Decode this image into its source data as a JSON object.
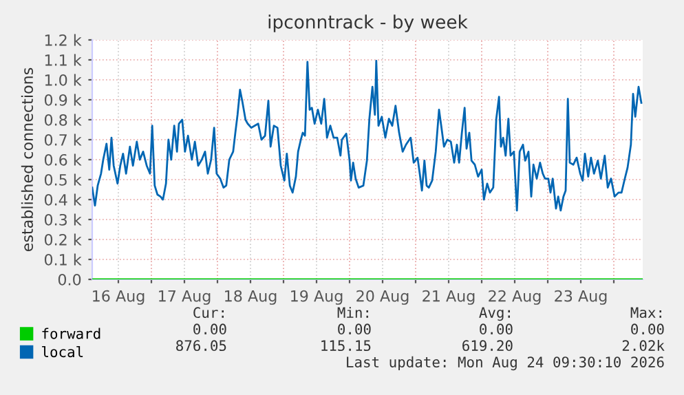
{
  "chart_data": {
    "type": "line",
    "title": "ipconntrack - by week",
    "ylabel": "established connections",
    "xlim": [
      "2026-08-16T02:30",
      "2026-08-24T10:30"
    ],
    "xticks": [
      {
        "value": "2026-08-16T12:00",
        "label": "16 Aug"
      },
      {
        "value": "2026-08-17T00:00",
        "label": null
      },
      {
        "value": "2026-08-17T12:00",
        "label": "17 Aug"
      },
      {
        "value": "2026-08-18T00:00",
        "label": null
      },
      {
        "value": "2026-08-18T12:00",
        "label": "18 Aug"
      },
      {
        "value": "2026-08-19T00:00",
        "label": null
      },
      {
        "value": "2026-08-19T12:00",
        "label": "19 Aug"
      },
      {
        "value": "2026-08-20T00:00",
        "label": null
      },
      {
        "value": "2026-08-20T12:00",
        "label": "20 Aug"
      },
      {
        "value": "2026-08-21T00:00",
        "label": null
      },
      {
        "value": "2026-08-21T12:00",
        "label": "21 Aug"
      },
      {
        "value": "2026-08-22T00:00",
        "label": null
      },
      {
        "value": "2026-08-22T12:00",
        "label": "22 Aug"
      },
      {
        "value": "2026-08-23T00:00",
        "label": null
      },
      {
        "value": "2026-08-23T12:00",
        "label": "23 Aug"
      },
      {
        "value": "2026-08-24T00:00",
        "label": null
      }
    ],
    "ylim": [
      0,
      1200
    ],
    "yticks": [
      {
        "value": 0,
        "label": "0.0"
      },
      {
        "value": 100,
        "label": "0.1 k"
      },
      {
        "value": 200,
        "label": "0.2 k"
      },
      {
        "value": 300,
        "label": "0.3 k"
      },
      {
        "value": 400,
        "label": "0.4 k"
      },
      {
        "value": 500,
        "label": "0.5 k"
      },
      {
        "value": 600,
        "label": "0.6 k"
      },
      {
        "value": 700,
        "label": "0.7 k"
      },
      {
        "value": 800,
        "label": "0.8 k"
      },
      {
        "value": 900,
        "label": "0.9 k"
      },
      {
        "value": 1000,
        "label": "1.0 k"
      },
      {
        "value": 1100,
        "label": "1.1 k"
      },
      {
        "value": 1200,
        "label": "1.2 k"
      }
    ],
    "grid": true,
    "legend": "bottom left",
    "marker": "none",
    "line_style": "solid",
    "series": [
      {
        "name": "forward",
        "color": "#00cc00",
        "x": [
          "2026-08-16T02:30",
          "2026-08-24T10:30"
        ],
        "values": [
          0,
          0
        ]
      },
      {
        "name": "local",
        "color": "#0066b3",
        "x": [
          "2026-08-16T02:30",
          "2026-08-16T03:30",
          "2026-08-16T04:30",
          "2026-08-16T05:42",
          "2026-08-16T06:30",
          "2026-08-16T07:42",
          "2026-08-16T08:42",
          "2026-08-16T09:30",
          "2026-08-16T10:18",
          "2026-08-16T11:42",
          "2026-08-16T12:42",
          "2026-08-16T13:42",
          "2026-08-16T14:48",
          "2026-08-16T16:12",
          "2026-08-16T17:18",
          "2026-08-16T18:42",
          "2026-08-16T19:48",
          "2026-08-16T21:00",
          "2026-08-16T22:18",
          "2026-08-16T23:30",
          "2026-08-17T00:18",
          "2026-08-17T01:12",
          "2026-08-17T02:12",
          "2026-08-17T03:18",
          "2026-08-17T04:12",
          "2026-08-17T05:18",
          "2026-08-17T06:12",
          "2026-08-17T07:12",
          "2026-08-17T08:18",
          "2026-08-17T09:18",
          "2026-08-17T10:00",
          "2026-08-17T11:12",
          "2026-08-17T12:12",
          "2026-08-17T13:18",
          "2026-08-17T14:42",
          "2026-08-17T15:48",
          "2026-08-17T17:00",
          "2026-08-17T18:18",
          "2026-08-17T19:30",
          "2026-08-17T20:30",
          "2026-08-17T21:42",
          "2026-08-17T22:48",
          "2026-08-17T23:42",
          "2026-08-18T01:00",
          "2026-08-18T02:12",
          "2026-08-18T03:12",
          "2026-08-18T04:18",
          "2026-08-18T05:42",
          "2026-08-18T06:30",
          "2026-08-18T07:18",
          "2026-08-18T08:12",
          "2026-08-18T09:00",
          "2026-08-18T10:12",
          "2026-08-18T11:00",
          "2026-08-18T12:18",
          "2026-08-18T13:30",
          "2026-08-18T14:48",
          "2026-08-18T16:00",
          "2026-08-18T17:18",
          "2026-08-18T18:30",
          "2026-08-18T19:18",
          "2026-08-18T20:30",
          "2026-08-18T21:48",
          "2026-08-18T23:00",
          "2026-08-19T00:18",
          "2026-08-19T01:12",
          "2026-08-19T02:18",
          "2026-08-19T03:18",
          "2026-08-19T04:30",
          "2026-08-19T05:18",
          "2026-08-19T06:18",
          "2026-08-19T07:00",
          "2026-08-19T07:48",
          "2026-08-19T08:42",
          "2026-08-19T09:30",
          "2026-08-19T10:18",
          "2026-08-19T11:18",
          "2026-08-19T12:30",
          "2026-08-19T13:42",
          "2026-08-19T14:48",
          "2026-08-19T15:48",
          "2026-08-19T17:00",
          "2026-08-19T18:12",
          "2026-08-19T19:30",
          "2026-08-19T20:42",
          "2026-08-19T21:12",
          "2026-08-19T22:48",
          "2026-08-20T00:00",
          "2026-08-20T00:30",
          "2026-08-20T01:18",
          "2026-08-20T02:12",
          "2026-08-20T03:18",
          "2026-08-20T05:00",
          "2026-08-20T06:18",
          "2026-08-20T07:12",
          "2026-08-20T08:18",
          "2026-08-20T09:12",
          "2026-08-20T09:42",
          "2026-08-20T10:30",
          "2026-08-20T11:42",
          "2026-08-20T13:00",
          "2026-08-20T14:18",
          "2026-08-20T15:30",
          "2026-08-20T16:42",
          "2026-08-20T18:00",
          "2026-08-20T19:18",
          "2026-08-20T20:30",
          "2026-08-20T22:12",
          "2026-08-20T23:18",
          "2026-08-21T00:42",
          "2026-08-21T01:30",
          "2026-08-21T02:18",
          "2026-08-21T03:12",
          "2026-08-21T04:00",
          "2026-08-21T04:48",
          "2026-08-21T06:00",
          "2026-08-21T07:18",
          "2026-08-21T08:30",
          "2026-08-21T09:18",
          "2026-08-21T10:18",
          "2026-08-21T11:30",
          "2026-08-21T12:48",
          "2026-08-21T14:00",
          "2026-08-21T15:00",
          "2026-08-21T15:48",
          "2026-08-21T16:48",
          "2026-08-21T17:48",
          "2026-08-21T18:30",
          "2026-08-21T19:30",
          "2026-08-21T20:18",
          "2026-08-21T21:30",
          "2026-08-21T22:42",
          "2026-08-22T00:00",
          "2026-08-22T00:48",
          "2026-08-22T02:00",
          "2026-08-22T03:00",
          "2026-08-22T04:12",
          "2026-08-22T05:18",
          "2026-08-22T06:18",
          "2026-08-22T07:00",
          "2026-08-22T07:48",
          "2026-08-22T08:42",
          "2026-08-22T09:42",
          "2026-08-22T10:30",
          "2026-08-22T11:42",
          "2026-08-22T12:48",
          "2026-08-22T13:48",
          "2026-08-22T15:00",
          "2026-08-22T15:48",
          "2026-08-22T17:00",
          "2026-08-22T18:00",
          "2026-08-22T18:48",
          "2026-08-22T20:00",
          "2026-08-22T21:12",
          "2026-08-22T22:12",
          "2026-08-22T23:00",
          "2026-08-23T00:12",
          "2026-08-23T01:00",
          "2026-08-23T01:48",
          "2026-08-23T03:00",
          "2026-08-23T03:48",
          "2026-08-23T04:42",
          "2026-08-23T05:42",
          "2026-08-23T06:30",
          "2026-08-23T07:18",
          "2026-08-23T08:00",
          "2026-08-23T09:18",
          "2026-08-23T10:30",
          "2026-08-23T11:48",
          "2026-08-23T12:42",
          "2026-08-23T13:30",
          "2026-08-23T14:42",
          "2026-08-23T15:42",
          "2026-08-23T16:48",
          "2026-08-23T18:12",
          "2026-08-23T19:18",
          "2026-08-23T20:42",
          "2026-08-23T21:48",
          "2026-08-23T23:00",
          "2026-08-24T00:18",
          "2026-08-24T01:42",
          "2026-08-24T02:48",
          "2026-08-24T04:00",
          "2026-08-24T05:00",
          "2026-08-24T06:12",
          "2026-08-24T07:00",
          "2026-08-24T07:48",
          "2026-08-24T09:00",
          "2026-08-24T10:00"
        ],
        "values": [
          460,
          370,
          470,
          530,
          600,
          680,
          550,
          710,
          570,
          480,
          570,
          630,
          530,
          665,
          570,
          690,
          600,
          640,
          570,
          530,
          770,
          470,
          425,
          415,
          400,
          480,
          700,
          600,
          770,
          640,
          780,
          800,
          640,
          720,
          600,
          690,
          570,
          600,
          640,
          530,
          600,
          760,
          530,
          505,
          460,
          470,
          600,
          640,
          735,
          825,
          950,
          895,
          800,
          780,
          760,
          770,
          780,
          700,
          720,
          895,
          665,
          770,
          760,
          570,
          495,
          630,
          470,
          435,
          515,
          640,
          700,
          735,
          720,
          1090,
          850,
          860,
          780,
          850,
          780,
          905,
          710,
          770,
          710,
          710,
          620,
          700,
          730,
          595,
          495,
          585,
          505,
          460,
          470,
          595,
          805,
          965,
          825,
          1095,
          770,
          815,
          710,
          805,
          770,
          870,
          735,
          640,
          675,
          710,
          585,
          610,
          530,
          445,
          595,
          470,
          460,
          495,
          640,
          850,
          770,
          665,
          700,
          690,
          585,
          675,
          585,
          735,
          860,
          655,
          735,
          595,
          575,
          515,
          550,
          400,
          480,
          435,
          460,
          805,
          915,
          665,
          710,
          620,
          805,
          620,
          640,
          345,
          640,
          675,
          595,
          640,
          415,
          575,
          505,
          585,
          530,
          505,
          505,
          435,
          505,
          355,
          415,
          345,
          415,
          445,
          905,
          585,
          575,
          610,
          530,
          495,
          630,
          515,
          610,
          530,
          595,
          505,
          620,
          460,
          505,
          415,
          435,
          435,
          505,
          560,
          675,
          930,
          815,
          965,
          885
        ]
      }
    ],
    "annotations": [
      "Cur:",
      "Min:",
      "Avg:",
      "Max:",
      "0.00",
      "0.00",
      "0.00",
      "0.00",
      "876.05",
      "115.15",
      "619.20",
      "2.02k",
      "Last update: Mon Aug 24 09:30:10 2026"
    ]
  }
}
